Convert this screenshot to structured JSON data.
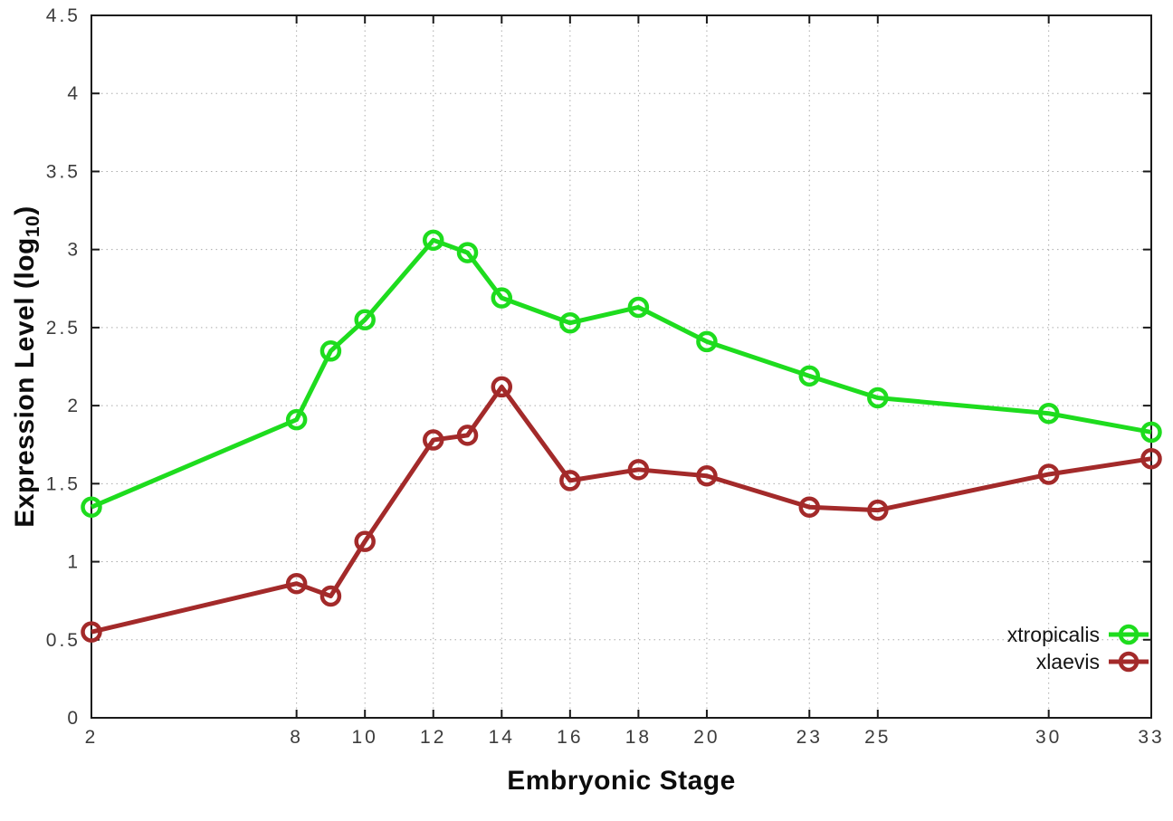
{
  "figure": {
    "xlabel": "Embryonic Stage",
    "ylabel_prefix": "Expression Level (log",
    "ylabel_sub": "10",
    "ylabel_suffix": ")"
  },
  "chart_data": {
    "type": "line",
    "title": "",
    "xlabel": "Embryonic Stage",
    "ylabel": "Expression Level (log10)",
    "x": [
      2,
      8,
      9,
      10,
      12,
      13,
      14,
      16,
      18,
      20,
      23,
      25,
      30,
      33
    ],
    "series": [
      {
        "name": "xtropicalis",
        "color": "#1edc1e",
        "values": [
          1.35,
          1.91,
          2.35,
          2.55,
          3.06,
          2.98,
          2.69,
          2.53,
          2.63,
          2.41,
          2.19,
          2.05,
          1.95,
          1.83
        ]
      },
      {
        "name": "xlaevis",
        "color": "#a32a2a",
        "values": [
          0.55,
          0.86,
          0.78,
          1.13,
          1.78,
          1.81,
          2.12,
          1.52,
          1.59,
          1.55,
          1.35,
          1.33,
          1.56,
          1.66
        ]
      }
    ],
    "xticks": [
      2,
      8,
      10,
      12,
      14,
      16,
      18,
      20,
      23,
      25,
      30,
      33
    ],
    "yticks": [
      0,
      0.5,
      1,
      1.5,
      2,
      2.5,
      3,
      3.5,
      4,
      4.5
    ],
    "xlim": [
      2,
      33
    ],
    "ylim": [
      0,
      4.5
    ],
    "grid": true,
    "legend_position": "bottom-right",
    "marker": "open-circle",
    "grid_color": "#ababab",
    "axis_color": "#1a1a1a",
    "tick_label_color": "#3c3c3c"
  }
}
